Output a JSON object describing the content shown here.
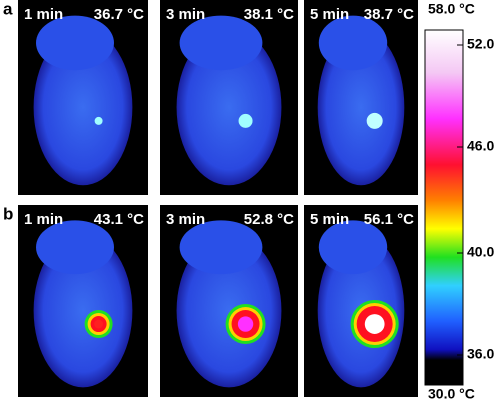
{
  "panels": [
    {
      "label": "a",
      "images": [
        {
          "time": "1 min",
          "temperature": "36.7 °C"
        },
        {
          "time": "3 min",
          "temperature": "38.1 °C"
        },
        {
          "time": "5 min",
          "temperature": "38.7 °C"
        }
      ]
    },
    {
      "label": "b",
      "images": [
        {
          "time": "1 min",
          "temperature": "43.1 °C"
        },
        {
          "time": "3 min",
          "temperature": "52.8 °C"
        },
        {
          "time": "5 min",
          "temperature": "56.1 °C"
        }
      ]
    }
  ],
  "colorbar": {
    "max_label": "58.0 °C",
    "min_label": "30.0 °C",
    "ticks": [
      "52.0",
      "46.0",
      "40.0",
      "36.0"
    ]
  }
}
